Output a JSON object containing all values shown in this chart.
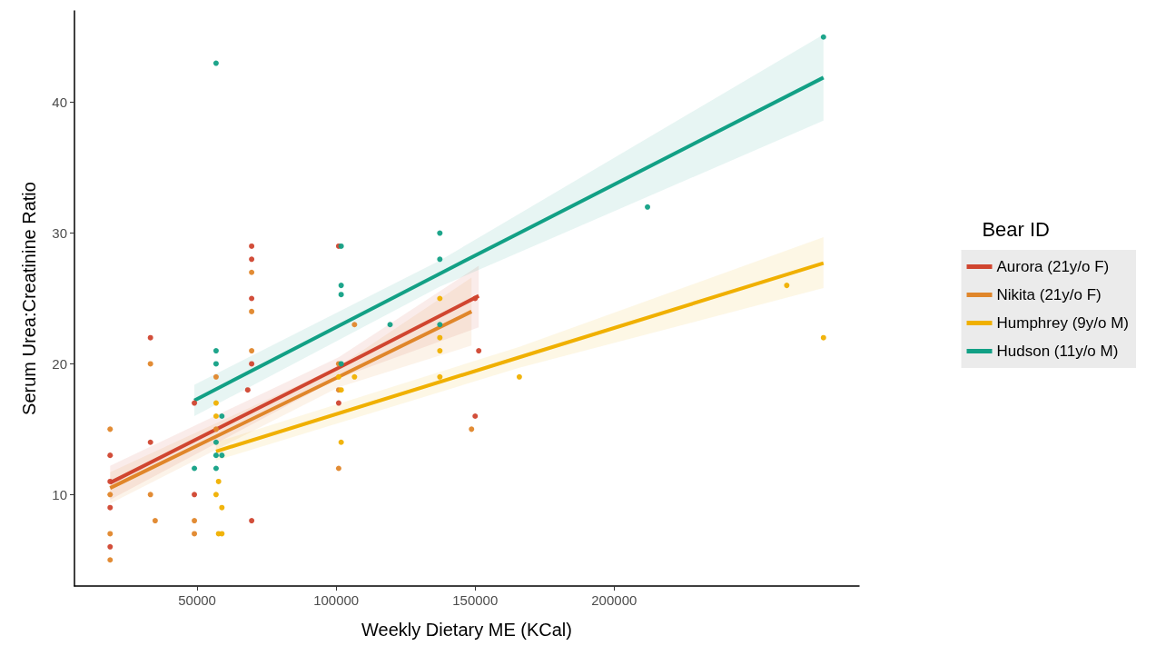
{
  "chart_data": {
    "type": "scatter",
    "xlabel": "Weekly Dietary ME (KCal)",
    "ylabel": "Serum Urea:Creatinine Ratio",
    "legend_title": "Bear ID",
    "xlim": [
      5870,
      288100
    ],
    "xticks": [
      50000,
      100000,
      150000,
      200000
    ],
    "ylim": [
      3,
      47
    ],
    "yticks": [
      10,
      20,
      30,
      40
    ],
    "grid": false,
    "legend": "right",
    "marker": "circle",
    "series": [
      {
        "color": "#d0452f",
        "x": [
          18700,
          18700,
          18700,
          18700,
          33200,
          33200,
          49000,
          49000,
          69600,
          69600,
          69600,
          69600,
          68200,
          69600,
          100900,
          100900,
          150000,
          151300,
          150000
        ],
        "values": [
          13,
          11,
          9,
          6,
          22,
          14,
          17,
          10,
          29,
          28,
          25,
          20,
          18,
          8,
          29,
          17,
          25,
          21,
          16
        ]
      },
      {
        "color": "#e0862a",
        "x": [
          18700,
          18700,
          18700,
          18700,
          33200,
          33200,
          34900,
          49000,
          49000,
          56800,
          56800,
          69600,
          69600,
          69600,
          100900,
          100900,
          100900,
          106600,
          148700
        ],
        "values": [
          15,
          10,
          7,
          5,
          20,
          10,
          8,
          8,
          7,
          19,
          15,
          27,
          24,
          21,
          20,
          18,
          12,
          23,
          15
        ]
      },
      {
        "color": "#f0b000",
        "x": [
          56800,
          56800,
          57700,
          56800,
          58900,
          57700,
          58900,
          100900,
          101800,
          101800,
          106600,
          137300,
          137300,
          137300,
          137300,
          165900,
          262100,
          275300
        ],
        "values": [
          17,
          16,
          11,
          10,
          9,
          7,
          7,
          19,
          18,
          14,
          19,
          25,
          22,
          21,
          19,
          19,
          26,
          22
        ]
      },
      {
        "color": "#12a085",
        "x": [
          56800,
          56800,
          56800,
          58900,
          56800,
          56800,
          58900,
          56800,
          49000,
          101800,
          101800,
          101800,
          101800,
          119400,
          137300,
          137300,
          137300,
          212000,
          275300
        ],
        "values": [
          43,
          21,
          20,
          16,
          14,
          13,
          13,
          12,
          12,
          29,
          26,
          25.3,
          20,
          23,
          30,
          28,
          23,
          32,
          45
        ]
      },
      {
        "type": "line",
        "name": "Aurora (21y/o F)",
        "color": "#d0452f",
        "marker": "none",
        "x": [
          18700,
          100900,
          151300
        ],
        "values": [
          10.9,
          19.7,
          25.2
        ],
        "lower": [
          9.6,
          18.9,
          22.8
        ],
        "upper": [
          12.2,
          20.5,
          27.5
        ]
      },
      {
        "type": "line",
        "name": "Nikita (21y/o F)",
        "color": "#e0862a",
        "marker": "none",
        "x": [
          18700,
          100900,
          148700
        ],
        "values": [
          10.5,
          19.0,
          24.0
        ],
        "lower": [
          9.3,
          18.2,
          21.4
        ],
        "upper": [
          11.7,
          19.8,
          26.6
        ]
      },
      {
        "type": "line",
        "name": "Humphrey (9y/o M)",
        "color": "#f0b000",
        "marker": "none",
        "x": [
          56800,
          165900,
          275300
        ],
        "values": [
          13.3,
          20.5,
          27.7
        ],
        "lower": [
          12.6,
          19.7,
          25.8
        ],
        "upper": [
          14.0,
          21.3,
          29.7
        ]
      },
      {
        "type": "line",
        "name": "Hudson (11y/o M)",
        "color": "#12a085",
        "marker": "none",
        "x": [
          49000,
          137300,
          275300
        ],
        "values": [
          17.2,
          26.9,
          41.9
        ],
        "lower": [
          16.0,
          25.9,
          38.6
        ],
        "upper": [
          18.4,
          27.9,
          45.2
        ]
      }
    ]
  }
}
